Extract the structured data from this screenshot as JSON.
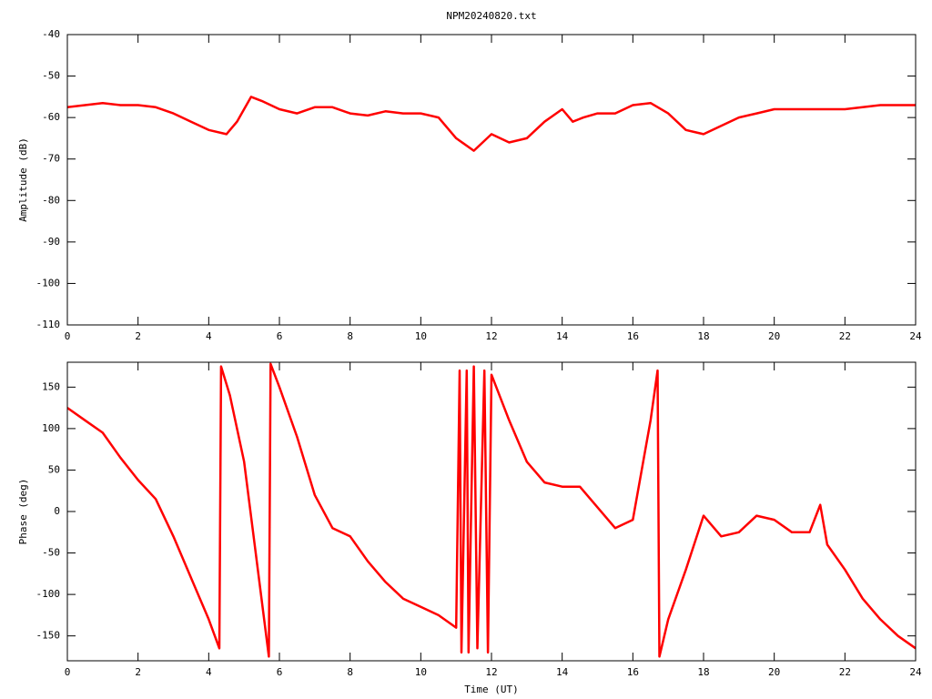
{
  "chart_data": [
    {
      "type": "line",
      "title": "NPM20240820.txt",
      "y_label": "Amplitude (dB)",
      "x": [
        0,
        0.5,
        1,
        1.5,
        2,
        2.5,
        3,
        3.5,
        4,
        4.5,
        4.8,
        5.2,
        5.5,
        6,
        6.5,
        7,
        7.5,
        8,
        8.5,
        9,
        9.5,
        10,
        10.5,
        11,
        11.5,
        12,
        12.5,
        13,
        13.5,
        14,
        14.3,
        14.6,
        15,
        15.5,
        16,
        16.5,
        17,
        17.5,
        18,
        18.5,
        19,
        19.5,
        20,
        21,
        22,
        23,
        24
      ],
      "series": [
        {
          "color": "#ff0000",
          "values": [
            -57.5,
            -57,
            -56.5,
            -57,
            -57,
            -57.5,
            -59,
            -61,
            -63,
            -64,
            -61,
            -55,
            -56,
            -58,
            -59,
            -57.5,
            -57.5,
            -59,
            -59.5,
            -58.5,
            -59,
            -59,
            -60,
            -65,
            -68,
            -64,
            -66,
            -65,
            -61,
            -58,
            -61,
            -60,
            -59,
            -59,
            -57,
            -56.5,
            -59,
            -63,
            -64,
            -62,
            -60,
            -59,
            -58,
            -58,
            -58,
            -57,
            -57
          ]
        }
      ],
      "xlim": [
        0,
        24
      ],
      "xticks": [
        0,
        2,
        4,
        6,
        8,
        10,
        12,
        14,
        16,
        18,
        20,
        22,
        24
      ],
      "ylim": [
        -110,
        -40
      ],
      "yticks": [
        -110,
        -100,
        -90,
        -80,
        -70,
        -60,
        -50,
        -40
      ]
    },
    {
      "type": "line",
      "x_label": "Time (UT)",
      "y_label": "Phase (deg)",
      "x": [
        0,
        0.5,
        1,
        1.5,
        2,
        2.5,
        3,
        3.5,
        4,
        4.3,
        4.35,
        4.6,
        5,
        5.3,
        5.7,
        5.75,
        6,
        6.5,
        7,
        7.5,
        8,
        8.5,
        9,
        9.5,
        10,
        10.5,
        11,
        11.1,
        11.15,
        11.3,
        11.35,
        11.5,
        11.6,
        11.8,
        11.9,
        12,
        12.5,
        13,
        13.5,
        14,
        14.5,
        15,
        15.5,
        16,
        16.5,
        16.7,
        16.75,
        17,
        17.5,
        18,
        18.5,
        19,
        19.5,
        20,
        20.5,
        21,
        21.3,
        21.5,
        22,
        22.5,
        23,
        23.5,
        24
      ],
      "series": [
        {
          "color": "#ff0000",
          "values": [
            125,
            110,
            95,
            65,
            38,
            15,
            -30,
            -80,
            -130,
            -165,
            175,
            140,
            60,
            -40,
            -175,
            178,
            150,
            90,
            20,
            -20,
            -30,
            -60,
            -85,
            -105,
            -115,
            -125,
            -140,
            170,
            -170,
            170,
            -170,
            175,
            -165,
            170,
            -170,
            165,
            110,
            60,
            35,
            30,
            30,
            5,
            -20,
            -10,
            110,
            170,
            -175,
            -130,
            -70,
            -5,
            -30,
            -25,
            -5,
            -10,
            -25,
            -25,
            8,
            -40,
            -70,
            -105,
            -130,
            -150,
            -165
          ]
        }
      ],
      "xlim": [
        0,
        24
      ],
      "xticks": [
        0,
        2,
        4,
        6,
        8,
        10,
        12,
        14,
        16,
        18,
        20,
        22,
        24
      ],
      "ylim": [
        -180,
        180
      ],
      "yticks": [
        -150,
        -100,
        -50,
        0,
        50,
        100,
        150
      ]
    }
  ]
}
